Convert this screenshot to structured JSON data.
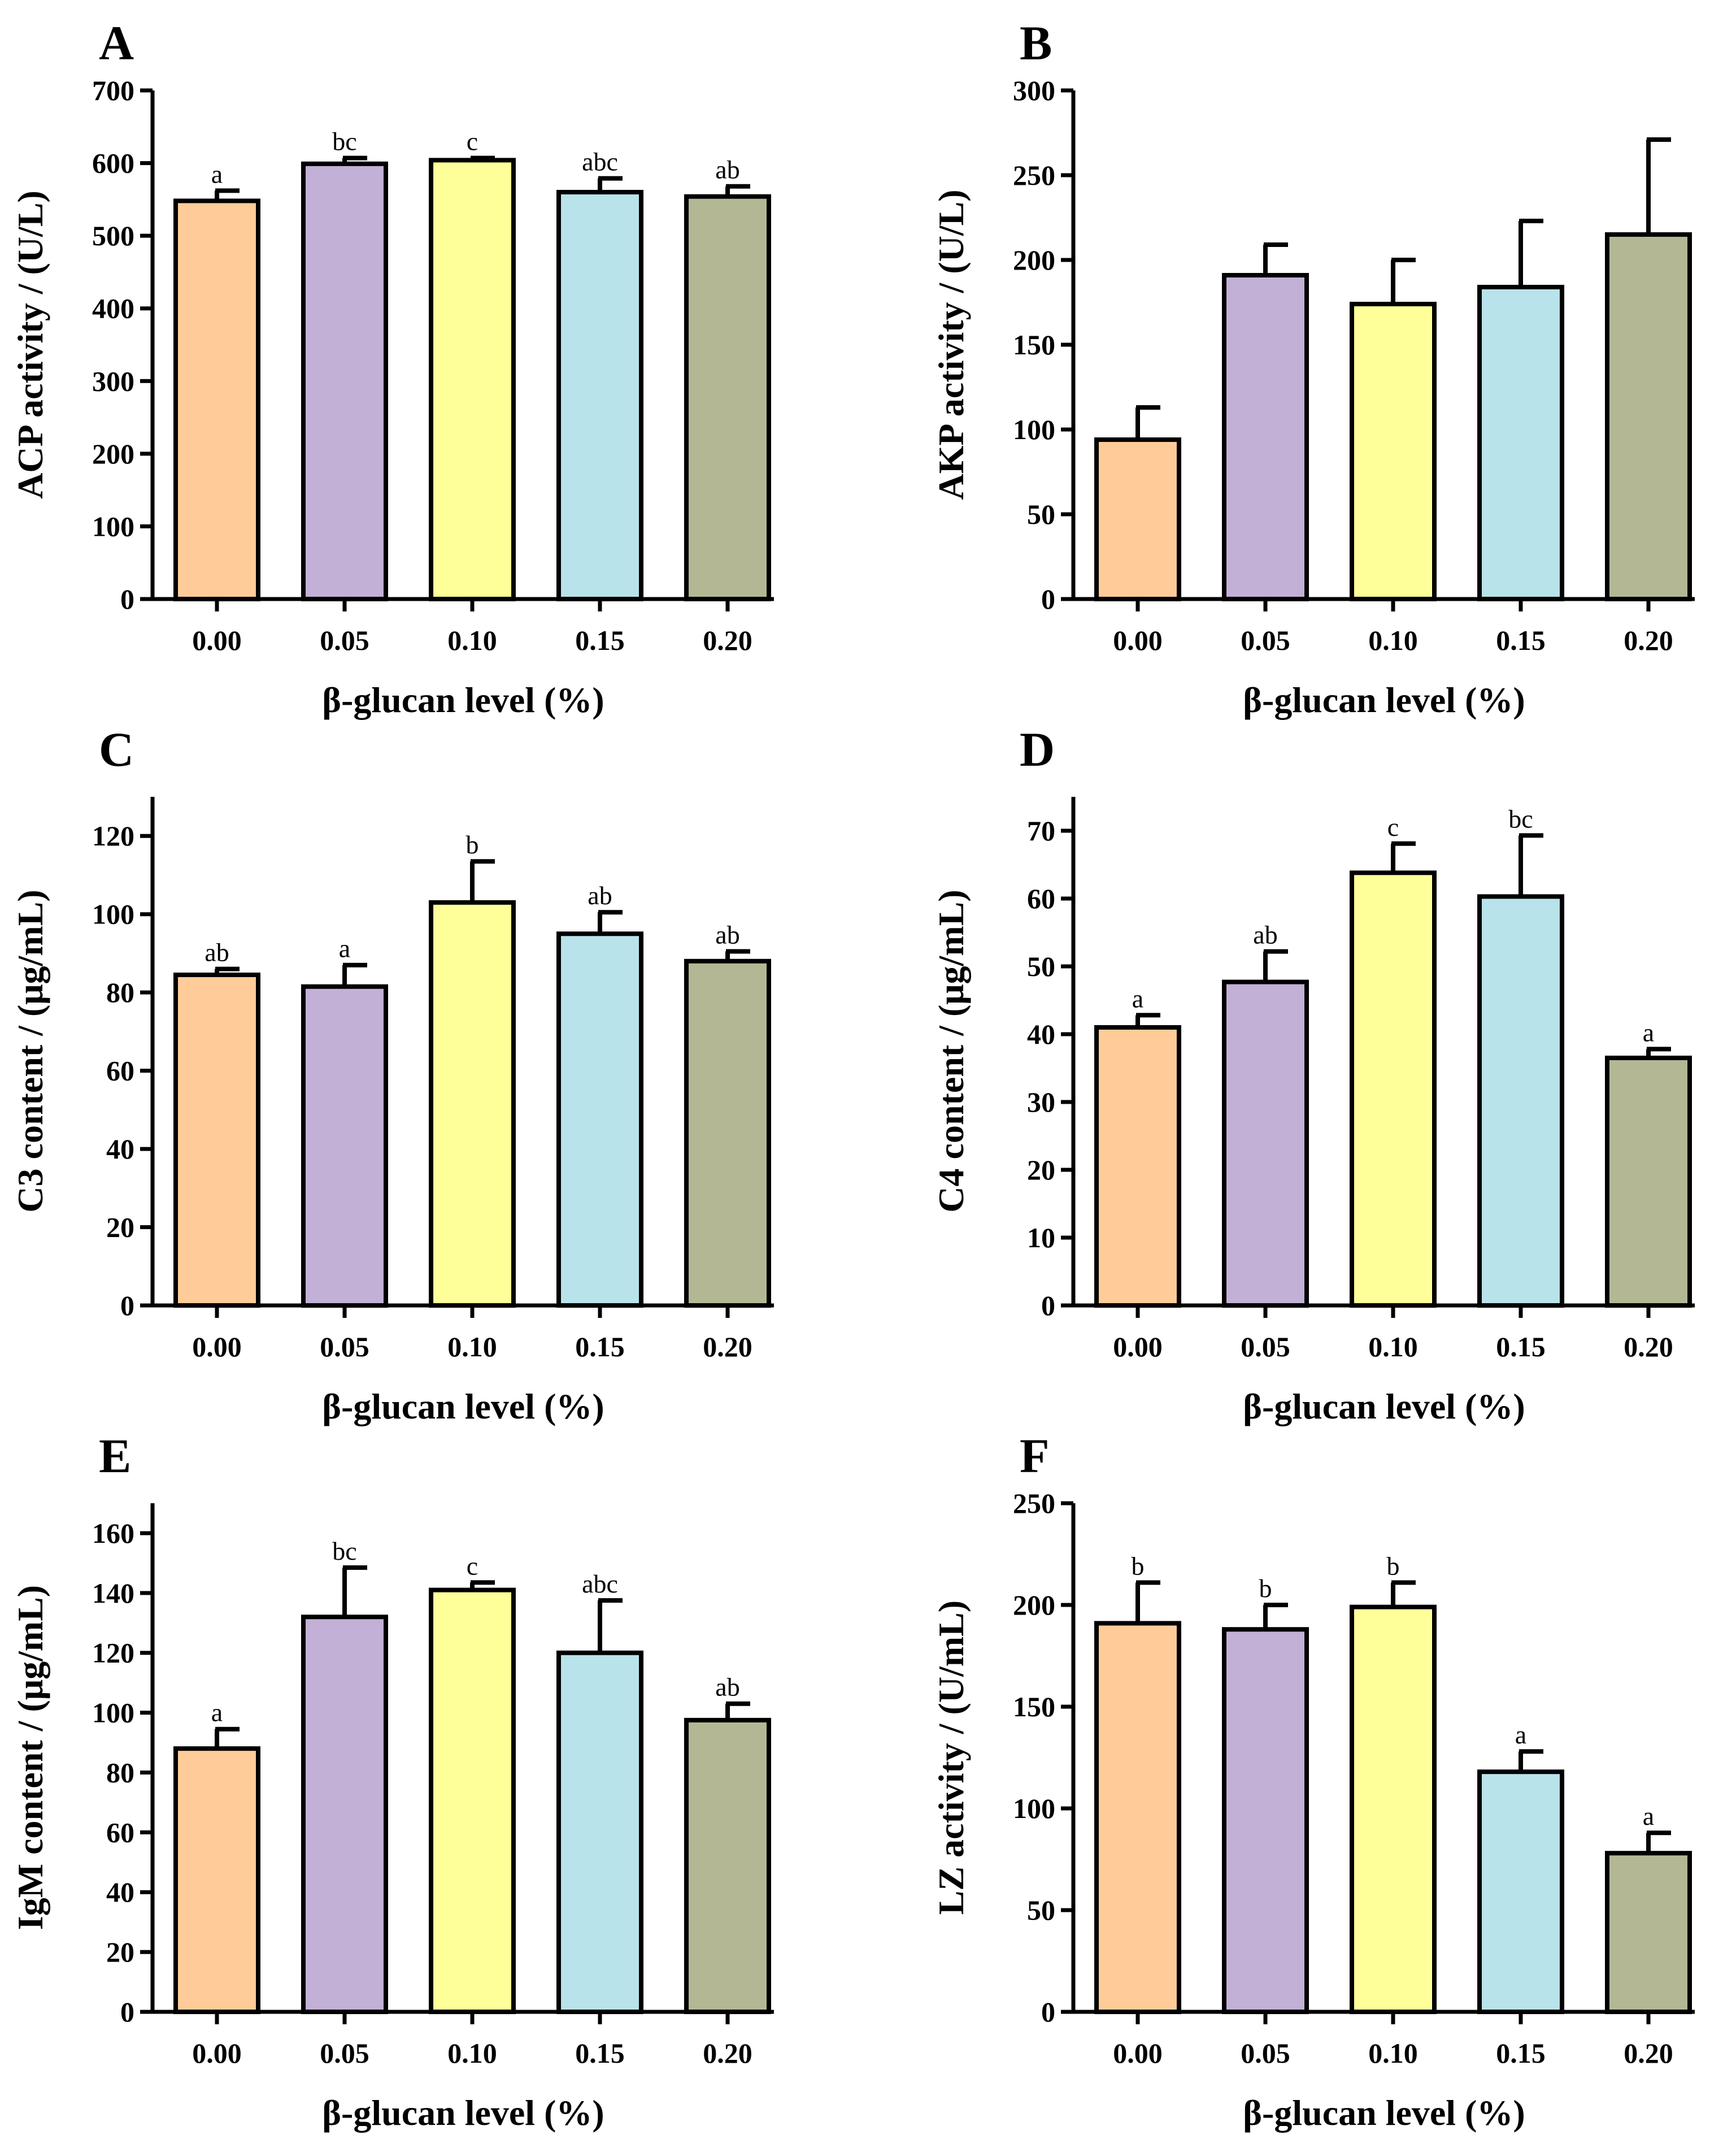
{
  "figure": {
    "xlabel": "β-glucan level (%)",
    "categories": [
      "0.00",
      "0.05",
      "0.10",
      "0.15",
      "0.20"
    ],
    "bar_colors": [
      "#FFCB99",
      "#C2B0D6",
      "#FFFF99",
      "#B8E3EA",
      "#B4B794"
    ],
    "axis_color": "#000000"
  },
  "chart_data": [
    {
      "panel": "A",
      "type": "bar",
      "ylabel": "ACP activity / (U/L)",
      "xlabel": "β-glucan level (%)",
      "categories": [
        "0.00",
        "0.05",
        "0.10",
        "0.15",
        "0.20"
      ],
      "values": [
        548,
        599,
        604,
        560,
        554
      ],
      "errors": [
        14,
        8,
        3,
        19,
        14
      ],
      "sig_letters": [
        "a",
        "bc",
        "c",
        "abc",
        "ab"
      ],
      "ylim": [
        0,
        700
      ],
      "yticks": [
        0,
        100,
        200,
        300,
        400,
        500,
        600,
        700
      ]
    },
    {
      "panel": "B",
      "type": "bar",
      "ylabel": "AKP activity / (U/L)",
      "xlabel": "β-glucan level (%)",
      "categories": [
        "0.00",
        "0.05",
        "0.10",
        "0.15",
        "0.20"
      ],
      "values": [
        94,
        191,
        174,
        184,
        215
      ],
      "errors": [
        19,
        18,
        26,
        39,
        56
      ],
      "sig_letters": [
        "",
        "",
        "",
        "",
        ""
      ],
      "ylim": [
        0,
        300
      ],
      "yticks": [
        0,
        50,
        100,
        150,
        200,
        250,
        300
      ]
    },
    {
      "panel": "C",
      "type": "bar",
      "ylabel": "C3 content / (μg/mL)",
      "xlabel": "β-glucan level (%)",
      "categories": [
        "0.00",
        "0.05",
        "0.10",
        "0.15",
        "0.20"
      ],
      "values": [
        84.5,
        81.5,
        103,
        95,
        88
      ],
      "errors": [
        1.5,
        5.5,
        10.5,
        5.5,
        2.5
      ],
      "sig_letters": [
        "ab",
        "a",
        "b",
        "ab",
        "ab"
      ],
      "ylim": [
        0,
        130
      ],
      "yticks": [
        0,
        20,
        40,
        60,
        80,
        100,
        120
      ]
    },
    {
      "panel": "D",
      "type": "bar",
      "ylabel": "C4 content / (μg/mL)",
      "xlabel": "β-glucan level (%)",
      "categories": [
        "0.00",
        "0.05",
        "0.10",
        "0.15",
        "0.20"
      ],
      "values": [
        41,
        47.7,
        63.8,
        60.3,
        36.5
      ],
      "errors": [
        1.8,
        4.5,
        4.3,
        9,
        1.3
      ],
      "sig_letters": [
        "a",
        "ab",
        "c",
        "bc",
        "a"
      ],
      "ylim": [
        0,
        75
      ],
      "yticks": [
        0,
        10,
        20,
        30,
        40,
        50,
        60,
        70
      ]
    },
    {
      "panel": "E",
      "type": "bar",
      "ylabel": "IgM content / (μg/mL)",
      "xlabel": "β-glucan level (%)",
      "categories": [
        "0.00",
        "0.05",
        "0.10",
        "0.15",
        "0.20"
      ],
      "values": [
        88,
        132,
        141,
        120,
        97.5
      ],
      "errors": [
        6.5,
        16.5,
        2.5,
        17.5,
        5.5
      ],
      "sig_letters": [
        "a",
        "bc",
        "c",
        "abc",
        "ab"
      ],
      "ylim": [
        0,
        170
      ],
      "yticks": [
        0,
        20,
        40,
        60,
        80,
        100,
        120,
        140,
        160
      ]
    },
    {
      "panel": "F",
      "type": "bar",
      "ylabel": "LZ activity / (U/mL)",
      "xlabel": "β-glucan level (%)",
      "categories": [
        "0.00",
        "0.05",
        "0.10",
        "0.15",
        "0.20"
      ],
      "values": [
        191,
        188,
        199,
        118,
        78
      ],
      "errors": [
        20,
        12,
        12,
        10,
        10
      ],
      "sig_letters": [
        "b",
        "b",
        "b",
        "a",
        "a"
      ],
      "ylim": [
        0,
        250
      ],
      "yticks": [
        0,
        50,
        100,
        150,
        200,
        250
      ]
    }
  ]
}
